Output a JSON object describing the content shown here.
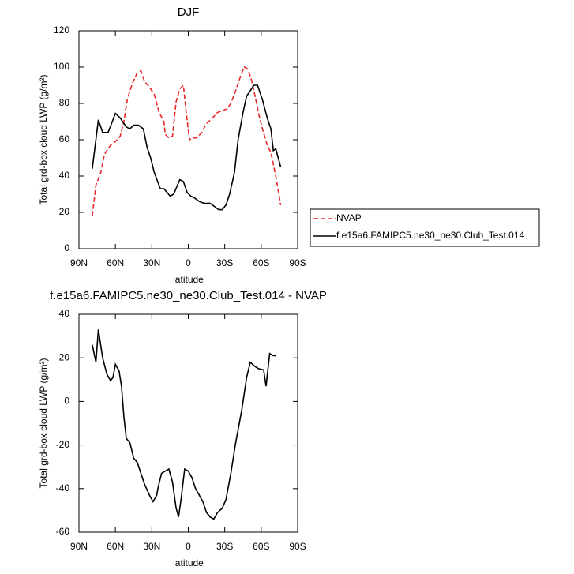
{
  "chart_data": [
    {
      "type": "line",
      "title": "DJF",
      "xlabel": "latitude",
      "ylabel": "Total grd-box cloud LWP (g/m²)",
      "xlim": [
        90,
        -90
      ],
      "xticks": [
        {
          "value": 90,
          "label": "90N"
        },
        {
          "value": 60,
          "label": "60N"
        },
        {
          "value": 30,
          "label": "30N"
        },
        0,
        {
          "value": -30,
          "label": "30S"
        },
        {
          "value": -60,
          "label": "60S"
        },
        {
          "value": -90,
          "label": "90S"
        }
      ],
      "ylim": [
        0,
        120
      ],
      "yticks": [
        0,
        20,
        40,
        60,
        80,
        100,
        120
      ],
      "legend": "outside right",
      "series": [
        {
          "name": "NVAP",
          "color": "#e8282a",
          "line_style": "dashed",
          "x": [
            79,
            76,
            72,
            69,
            64,
            60,
            56,
            53,
            50,
            46,
            42,
            39,
            36,
            32,
            28,
            24,
            20,
            19,
            16,
            13,
            10,
            7,
            4,
            2,
            -1,
            -4,
            -7,
            -11,
            -15,
            -20,
            -24,
            -28,
            -32,
            -35,
            -39,
            -43,
            -46,
            -49,
            -52,
            -55,
            -58,
            -61,
            -65,
            -68,
            -72,
            -76
          ],
          "values": [
            18,
            35,
            42,
            52,
            57,
            59,
            62,
            70,
            83,
            91,
            97,
            98,
            92,
            89,
            85,
            75,
            70,
            63,
            61,
            62,
            81,
            88,
            90,
            77,
            60,
            61,
            61,
            64,
            69,
            72,
            75,
            76,
            77,
            80,
            87,
            95,
            100,
            99,
            93,
            84,
            74,
            66,
            57,
            53,
            40,
            24
          ]
        },
        {
          "name": "f.e15a6.FAMIPC5.ne30_ne30.Club_Test.014",
          "color": "#000000",
          "line_style": "solid",
          "x": [
            79,
            74,
            70.5,
            66,
            60,
            56,
            51,
            48,
            45,
            41,
            37,
            34,
            31,
            28,
            23,
            20,
            15,
            12,
            7,
            4,
            1,
            -2,
            -5,
            -9,
            -13,
            -18,
            -22,
            -25,
            -28,
            -31,
            -34,
            -38,
            -41,
            -45,
            -48,
            -52,
            -54,
            -57,
            -61,
            -65,
            -68,
            -70,
            -72,
            -76
          ],
          "values": [
            44,
            71,
            64,
            64,
            74.5,
            72,
            67,
            66,
            68,
            68,
            66,
            56,
            50,
            42,
            33,
            33,
            29,
            30,
            38,
            37,
            31,
            29,
            28,
            26,
            25,
            25,
            23,
            21.5,
            21.5,
            24,
            30,
            42,
            60,
            75,
            84,
            88,
            90,
            90,
            82,
            72,
            66,
            54,
            55,
            45
          ]
        }
      ]
    },
    {
      "type": "line",
      "title": "f.e15a6.FAMIPC5.ne30_ne30.Club_Test.014 - NVAP",
      "xlabel": "latitude",
      "ylabel": "Total grd-box cloud LWP (g/m²)",
      "xlim": [
        90,
        -90
      ],
      "xticks": [
        {
          "value": 90,
          "label": "90N"
        },
        {
          "value": 60,
          "label": "60N"
        },
        {
          "value": 30,
          "label": "30N"
        },
        0,
        {
          "value": -30,
          "label": "30S"
        },
        {
          "value": -60,
          "label": "60S"
        },
        {
          "value": -90,
          "label": "90S"
        }
      ],
      "ylim": [
        -60,
        40
      ],
      "yticks": [
        -60,
        -40,
        -20,
        0,
        20,
        40
      ],
      "series": [
        {
          "color": "#000000",
          "line_style": "solid",
          "x": [
            79,
            76,
            74,
            70.5,
            67,
            64,
            62,
            60,
            57,
            55,
            53,
            51,
            48,
            45,
            42,
            39,
            36,
            32,
            29,
            26,
            25,
            22,
            19,
            16,
            13,
            10,
            8,
            6,
            3,
            0,
            -3,
            -6,
            -10,
            -12,
            -15,
            -18,
            -21,
            -24,
            -28,
            -31,
            -35,
            -39,
            -44,
            -48,
            -51,
            -55,
            -58,
            -62,
            -64,
            -67,
            -70,
            -72
          ],
          "values": [
            26,
            18,
            33,
            20,
            12.5,
            9.5,
            11,
            17,
            14,
            7,
            -7,
            -17,
            -19,
            -26,
            -28,
            -33,
            -38,
            -43,
            -46,
            -43,
            -40,
            -33,
            -32,
            -31,
            -37,
            -49,
            -53,
            -45,
            -31,
            -32,
            -35,
            -40,
            -44,
            -46,
            -51,
            -53,
            -54,
            -51,
            -49,
            -45,
            -33,
            -19,
            -4,
            11,
            18,
            16,
            15,
            14.5,
            7,
            22,
            21,
            21
          ]
        }
      ]
    }
  ]
}
